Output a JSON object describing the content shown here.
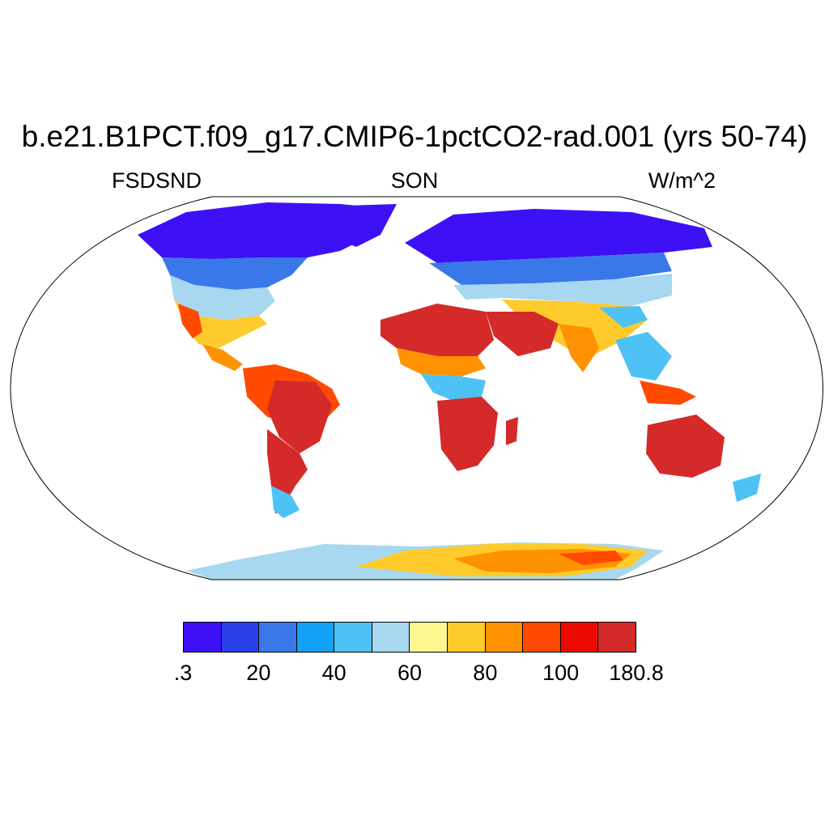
{
  "title": "b.e21.B1PCT.f09_g17.CMIP6-1pctCO2-rad.001 (yrs 50-74)",
  "subtitle_left": "FSDSND",
  "subtitle_center": "SON",
  "subtitle_right": "W/m^2",
  "projection": "Robinson",
  "colorbar": {
    "colors": [
      "#3e10f6",
      "#2a3fe8",
      "#3a78ea",
      "#14a2f8",
      "#4ec2f5",
      "#a8d8f0",
      "#fff68f",
      "#ffcb2c",
      "#ff9200",
      "#ff4a00",
      "#ec0a00",
      "#d42a2a"
    ],
    "labels": [
      ".3",
      "20",
      "40",
      "60",
      "80",
      "100",
      "180.8"
    ]
  },
  "map_regions": {
    "arctic_land": "#3e10f6",
    "boreal": "#3a78ea",
    "midlatitude": "#a8d8f0",
    "subtropical": "#ffcb2c",
    "deserts_and_tropics": "#d42a2a",
    "antarctica_coast": "#a8d8f0",
    "antarctica_interior": "#ff9200"
  }
}
